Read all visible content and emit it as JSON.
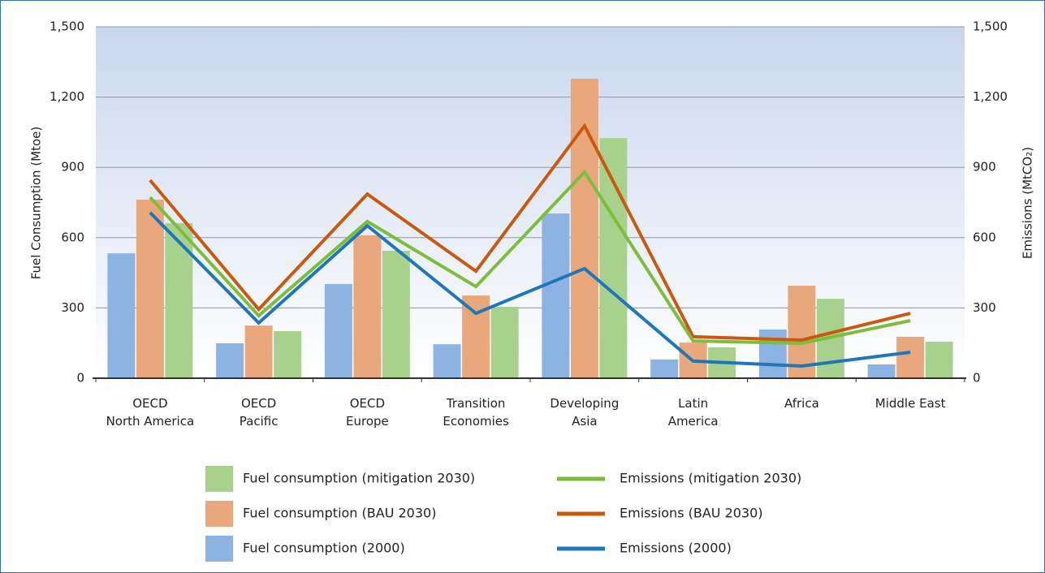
{
  "chart_data": {
    "type": "bar-line",
    "categories": [
      "OECD\nNorth America",
      "OECD\nPacific",
      "OECD\nEurope",
      "Transition\nEconomies",
      "Developing\nAsia",
      "Latin\nAmerica",
      "Africa",
      "Middle East"
    ],
    "ylabel": "Fuel Consumption (Mtoe)",
    "y2label": "Emissions (MtCO₂)",
    "ylim": [
      0,
      1500
    ],
    "yticks": [
      0,
      300,
      600,
      900,
      {
        "value": 1200,
        "label": "1,200"
      },
      {
        "value": 1500,
        "label": "1,500"
      }
    ],
    "y2lim": [
      0,
      1500
    ],
    "y2ticks": [
      0,
      300,
      600,
      900,
      {
        "value": 1200,
        "label": "1,200"
      },
      {
        "value": 1500,
        "label": "1,500"
      }
    ],
    "grid": true,
    "series": [
      {
        "name": "Fuel consumption (2000)",
        "type": "bar",
        "color": "#8db3e2",
        "values": [
          533,
          149,
          402,
          145,
          703,
          80,
          208,
          59
        ]
      },
      {
        "name": "Fuel consumption (BAU 2030)",
        "type": "bar",
        "color": "#e8a87c",
        "values": [
          762,
          225,
          610,
          353,
          1278,
          152,
          395,
          177
        ]
      },
      {
        "name": "Fuel consumption (mitigation 2030)",
        "type": "bar",
        "color": "#a9d18e",
        "values": [
          662,
          201,
          544,
          305,
          1025,
          132,
          339,
          156
        ]
      },
      {
        "name": "Emissions (2000)",
        "type": "line",
        "axis": "y2",
        "color": "#1f76b9",
        "values": [
          707,
          236,
          651,
          277,
          468,
          73,
          52,
          111
        ]
      },
      {
        "name": "Emissions (BAU 2030)",
        "type": "line",
        "axis": "y2",
        "color": "#c8590e",
        "values": [
          845,
          294,
          786,
          457,
          1077,
          177,
          163,
          277
        ]
      },
      {
        "name": "Emissions (mitigation 2030)",
        "type": "line",
        "axis": "y2",
        "color": "#7cbd3c",
        "values": [
          772,
          267,
          669,
          391,
          880,
          159,
          149,
          246
        ]
      }
    ]
  }
}
